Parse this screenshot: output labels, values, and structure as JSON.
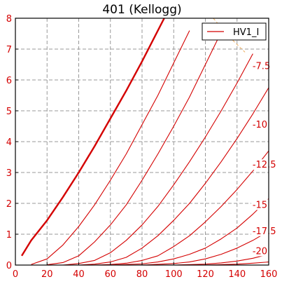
{
  "chart_data": {
    "type": "line",
    "title": "401 (Kellogg)",
    "xlabel": "",
    "ylabel": "",
    "xlim": [
      0,
      160
    ],
    "ylim": [
      0,
      8
    ],
    "x_ticks": [
      "0",
      "20",
      "40",
      "60",
      "80",
      "100",
      "120",
      "140",
      "160"
    ],
    "y_ticks": [
      "0",
      "1",
      "2",
      "3",
      "4",
      "5",
      "6",
      "7",
      "8"
    ],
    "grid": true,
    "legend": {
      "position": "top-right",
      "entries": [
        "HV1_I"
      ]
    },
    "colors": {
      "curves": "#d40000",
      "grid": "#999999",
      "hyperbola": "#f0b060"
    },
    "series": [
      {
        "grid_bias": "0",
        "bold": true,
        "x": [
          4,
          10,
          20,
          30,
          40,
          50,
          60,
          70,
          80,
          90,
          94
        ],
        "y": [
          0.3,
          0.8,
          1.45,
          2.2,
          3.0,
          3.85,
          4.75,
          5.65,
          6.6,
          7.6,
          8.0
        ]
      },
      {
        "grid_bias": "-2.5",
        "x": [
          10,
          20,
          30,
          40,
          50,
          60,
          70,
          80,
          90,
          100,
          110
        ],
        "y": [
          0.02,
          0.2,
          0.65,
          1.25,
          1.95,
          2.75,
          3.6,
          4.55,
          5.5,
          6.55,
          7.6
        ]
      },
      {
        "grid_bias": "-5",
        "x": [
          20,
          30,
          40,
          50,
          60,
          70,
          80,
          90,
          100,
          110,
          120,
          130
        ],
        "y": [
          0.01,
          0.08,
          0.3,
          0.75,
          1.3,
          1.95,
          2.75,
          3.6,
          4.5,
          5.45,
          6.5,
          7.55
        ]
      },
      {
        "grid_bias": "-7.5",
        "x": [
          30,
          40,
          50,
          60,
          70,
          80,
          90,
          100,
          110,
          120,
          130,
          140,
          150
        ],
        "y": [
          0.0,
          0.05,
          0.15,
          0.4,
          0.8,
          1.3,
          1.9,
          2.6,
          3.35,
          4.15,
          5.0,
          5.9,
          6.85
        ]
      },
      {
        "grid_bias": "-10",
        "x": [
          40,
          50,
          60,
          70,
          80,
          90,
          100,
          110,
          120,
          130,
          140,
          150,
          160
        ],
        "y": [
          0.0,
          0.03,
          0.1,
          0.25,
          0.55,
          0.95,
          1.45,
          2.0,
          2.65,
          3.35,
          4.1,
          4.9,
          5.75
        ]
      },
      {
        "grid_bias": "-12.5",
        "x": [
          50,
          60,
          70,
          80,
          90,
          100,
          110,
          120,
          130,
          140,
          150,
          160
        ],
        "y": [
          0.0,
          0.02,
          0.06,
          0.15,
          0.3,
          0.6,
          0.95,
          1.4,
          1.9,
          2.45,
          3.05,
          3.7
        ]
      },
      {
        "grid_bias": "-15",
        "x": [
          60,
          80,
          90,
          100,
          110,
          120,
          130,
          140,
          150,
          160
        ],
        "y": [
          0.0,
          0.04,
          0.1,
          0.2,
          0.35,
          0.55,
          0.85,
          1.2,
          1.65,
          2.15
        ]
      },
      {
        "grid_bias": "-17.5",
        "x": [
          80,
          100,
          110,
          120,
          130,
          140,
          150,
          160
        ],
        "y": [
          0.0,
          0.05,
          0.1,
          0.2,
          0.35,
          0.55,
          0.8,
          1.1
        ]
      },
      {
        "grid_bias": "-20",
        "x": [
          100,
          120,
          130,
          140,
          150,
          160
        ],
        "y": [
          0.0,
          0.03,
          0.07,
          0.13,
          0.22,
          0.35
        ]
      },
      {
        "grid_bias": "-22.5",
        "x": [
          120,
          140,
          150,
          160
        ],
        "y": [
          0.0,
          0.03,
          0.06,
          0.1
        ]
      }
    ],
    "curve_labels": [
      {
        "text": "-7.5",
        "x": 148,
        "y": 6.4
      },
      {
        "text": "-10",
        "x": 148,
        "y": 4.5
      },
      {
        "text": "-12.5",
        "x": 148,
        "y": 3.2
      },
      {
        "text": "-15",
        "x": 148,
        "y": 1.9
      },
      {
        "text": "-17.5",
        "x": 148,
        "y": 1.05
      },
      {
        "text": "-20",
        "x": 148,
        "y": 0.4
      }
    ],
    "max_dissipation": {
      "x": [
        125,
        130,
        135,
        140,
        145
      ],
      "y": [
        8.0,
        7.7,
        7.4,
        7.15,
        6.9
      ]
    }
  }
}
